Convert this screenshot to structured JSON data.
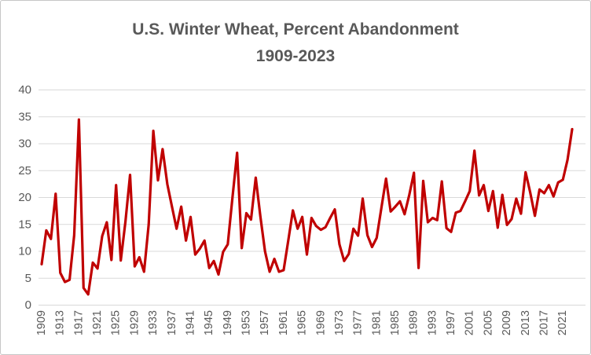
{
  "chart_data": {
    "type": "line",
    "title": "U.S. Winter Wheat, Percent Abandonment",
    "subtitle": "1909-2023",
    "series_name": "Winter wheat percent abandonment",
    "x": [
      1909,
      1910,
      1911,
      1912,
      1913,
      1914,
      1915,
      1916,
      1917,
      1918,
      1919,
      1920,
      1921,
      1922,
      1923,
      1924,
      1925,
      1926,
      1927,
      1928,
      1929,
      1930,
      1931,
      1932,
      1933,
      1934,
      1935,
      1936,
      1937,
      1938,
      1939,
      1940,
      1941,
      1942,
      1943,
      1944,
      1945,
      1946,
      1947,
      1948,
      1949,
      1950,
      1951,
      1952,
      1953,
      1954,
      1955,
      1956,
      1957,
      1958,
      1959,
      1960,
      1961,
      1962,
      1963,
      1964,
      1965,
      1966,
      1967,
      1968,
      1969,
      1970,
      1971,
      1972,
      1973,
      1974,
      1975,
      1976,
      1977,
      1978,
      1979,
      1980,
      1981,
      1982,
      1983,
      1984,
      1985,
      1986,
      1987,
      1988,
      1989,
      1990,
      1991,
      1992,
      1993,
      1994,
      1995,
      1996,
      1997,
      1998,
      1999,
      2000,
      2001,
      2002,
      2003,
      2004,
      2005,
      2006,
      2007,
      2008,
      2009,
      2010,
      2011,
      2012,
      2013,
      2014,
      2015,
      2016,
      2017,
      2018,
      2019,
      2020,
      2021,
      2022,
      2023
    ],
    "values": [
      7.6,
      13.9,
      12.3,
      20.7,
      6.0,
      4.3,
      4.7,
      13.0,
      34.5,
      3.2,
      2.0,
      7.9,
      6.8,
      12.8,
      15.4,
      8.4,
      22.3,
      8.3,
      15.5,
      24.2,
      7.2,
      8.9,
      6.2,
      15.0,
      32.4,
      23.2,
      29.0,
      22.5,
      18.3,
      14.2,
      18.3,
      12.0,
      16.4,
      9.4,
      10.5,
      12.0,
      6.9,
      8.2,
      5.7,
      9.9,
      11.3,
      20.0,
      28.3,
      10.6,
      17.1,
      15.9,
      23.7,
      16.5,
      10.0,
      6.2,
      8.6,
      6.2,
      6.5,
      12.0,
      17.6,
      14.2,
      16.4,
      9.4,
      16.2,
      14.7,
      14.0,
      14.5,
      16.2,
      17.8,
      11.3,
      8.2,
      9.5,
      14.2,
      12.9,
      19.8,
      13.0,
      10.8,
      12.5,
      18.0,
      23.5,
      17.4,
      18.3,
      19.3,
      16.9,
      20.5,
      24.6,
      6.9,
      23.1,
      15.4,
      16.2,
      15.8,
      23.0,
      14.3,
      13.6,
      17.2,
      17.5,
      19.3,
      21.2,
      28.7,
      20.4,
      22.3,
      17.5,
      21.2,
      14.4,
      20.5,
      14.9,
      16.0,
      19.8,
      17.0,
      24.7,
      20.9,
      16.6,
      21.5,
      20.8,
      22.3,
      20.2,
      22.8,
      23.3,
      27.0,
      32.7
    ],
    "xlabel": "",
    "ylabel": "",
    "ylim": [
      0,
      40
    ],
    "y_ticks": [
      0,
      5,
      10,
      15,
      20,
      25,
      30,
      35,
      40
    ],
    "x_ticks": [
      1909,
      1913,
      1917,
      1921,
      1925,
      1929,
      1933,
      1937,
      1941,
      1945,
      1949,
      1953,
      1957,
      1961,
      1965,
      1969,
      1973,
      1977,
      1981,
      1985,
      1989,
      1993,
      1997,
      2001,
      2005,
      2009,
      2013,
      2017,
      2021
    ],
    "grid": true,
    "legend": false,
    "line_color": "#C00000",
    "grid_color": "#D9D9D9",
    "label_color": "#595959",
    "title_color": "#595959"
  }
}
